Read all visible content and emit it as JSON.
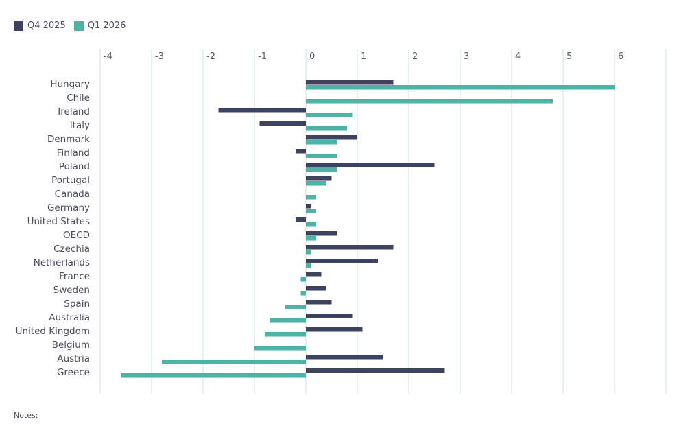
{
  "legend": [
    {
      "label": "Q4 2025",
      "color": "#3d4260"
    },
    {
      "label": "Q1 2026",
      "color": "#4db3a6"
    }
  ],
  "notes_label": "Notes:",
  "chart_data": {
    "type": "bar",
    "orientation": "horizontal",
    "xlim": [
      -4,
      7
    ],
    "x_ticks": [
      -4,
      -3,
      -2,
      -1,
      0,
      1,
      2,
      3,
      4,
      5,
      6
    ],
    "x_tick_labels": [
      "-4",
      "-3",
      "-2",
      "-1",
      "0",
      "1",
      "2",
      "3",
      "4",
      "5",
      "6"
    ],
    "grid": true,
    "legend_position": "top-left",
    "categories": [
      "Hungary",
      "Chile",
      "Ireland",
      "Italy",
      "Denmark",
      "Finland",
      "Poland",
      "Portugal",
      "Canada",
      "Germany",
      "United States",
      "OECD",
      "Czechia",
      "Netherlands",
      "France",
      "Sweden",
      "Spain",
      "Australia",
      "United Kingdom",
      "Belgium",
      "Austria",
      "Greece"
    ],
    "series": [
      {
        "name": "Q4 2025",
        "color": "#3d4260",
        "values": [
          1.7,
          null,
          -1.7,
          -0.9,
          1.0,
          -0.2,
          2.5,
          0.5,
          null,
          0.1,
          -0.2,
          0.6,
          1.7,
          1.4,
          0.3,
          0.4,
          0.5,
          0.9,
          1.1,
          null,
          1.5,
          2.7
        ]
      },
      {
        "name": "Q1 2026",
        "color": "#4db3a6",
        "values": [
          6.0,
          4.8,
          0.9,
          0.8,
          0.6,
          0.6,
          0.6,
          0.4,
          0.2,
          0.2,
          0.2,
          0.2,
          0.1,
          0.1,
          -0.1,
          -0.1,
          -0.4,
          -0.7,
          -0.8,
          -1.0,
          -2.8,
          -3.6
        ]
      }
    ]
  }
}
